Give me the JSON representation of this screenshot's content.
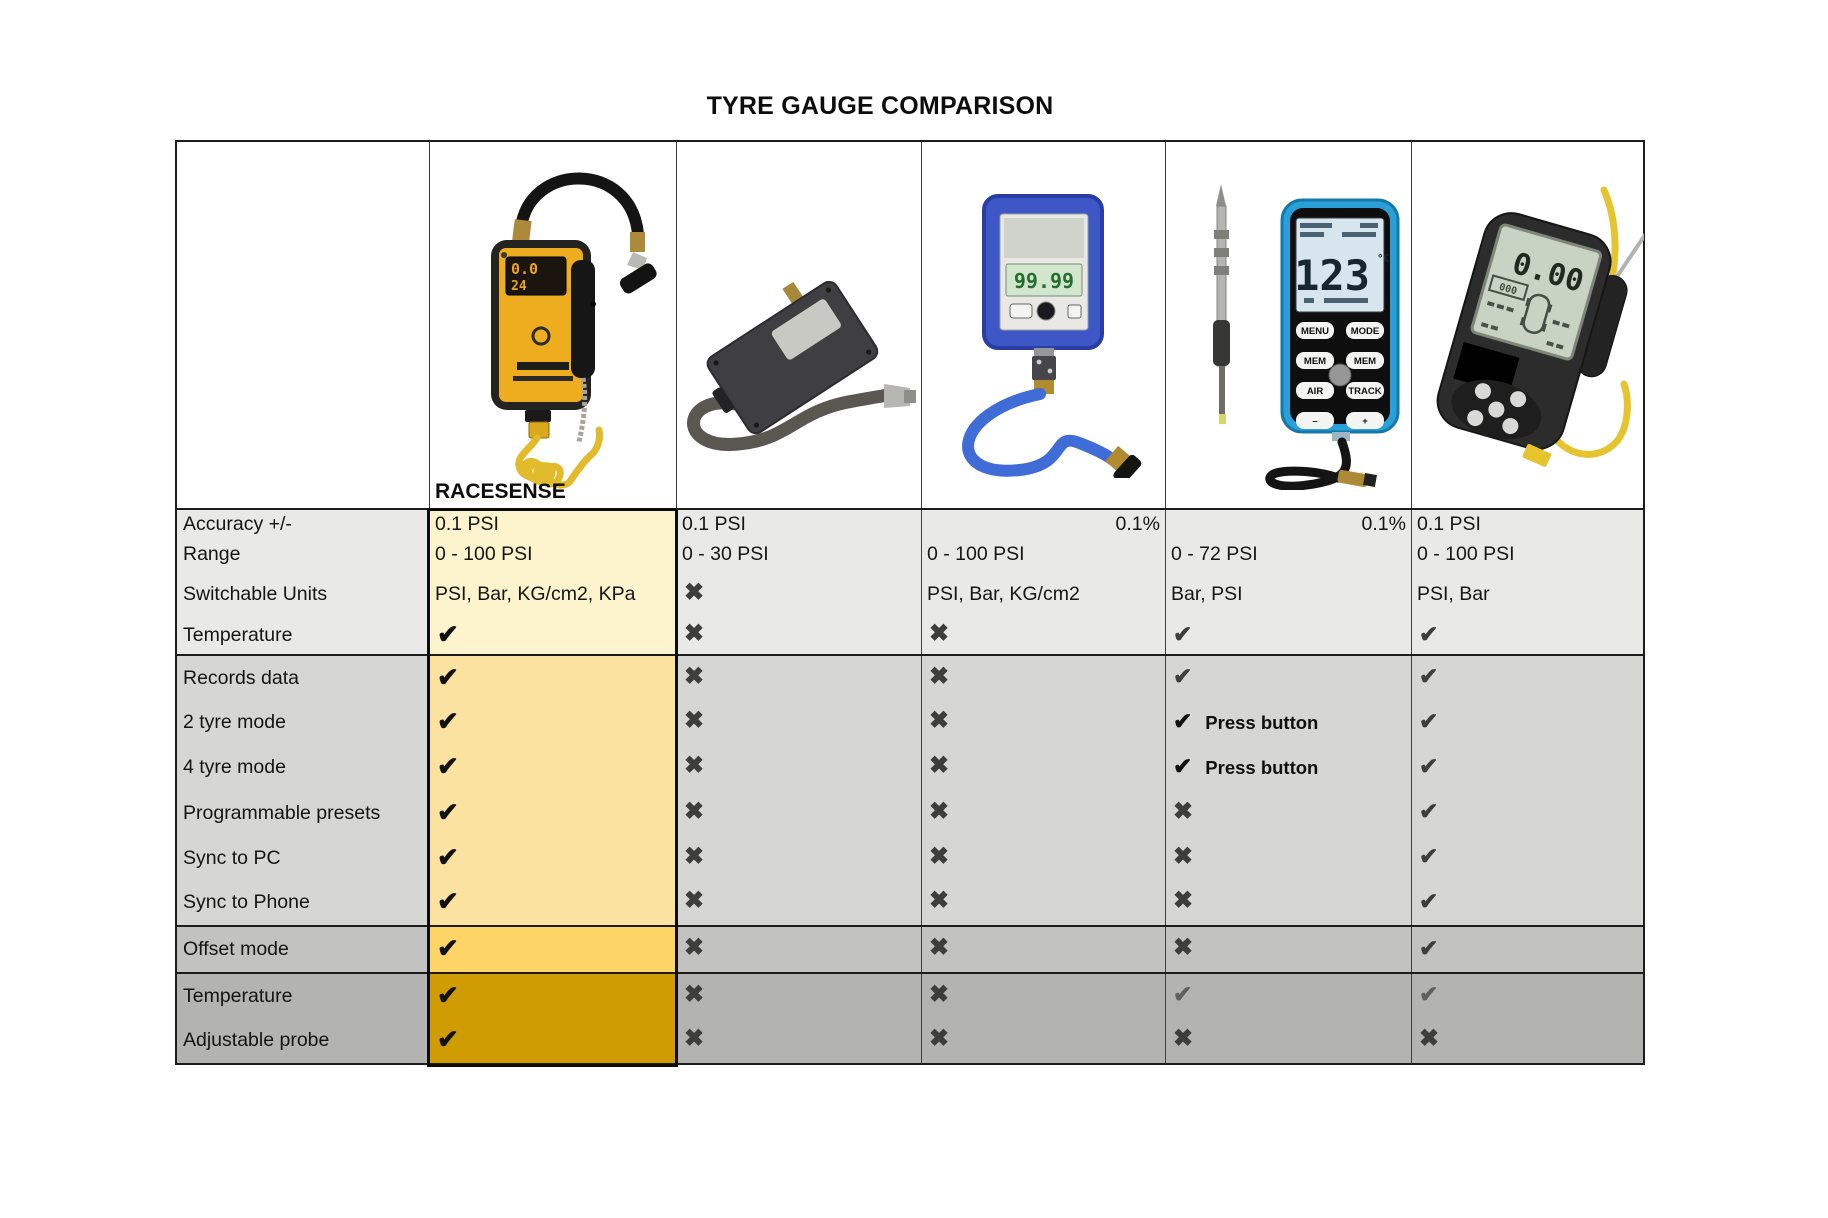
{
  "title": "TYRE GAUGE COMPARISON",
  "header": {
    "racesense_label": "RACESENSE",
    "products": [
      {
        "id": "racesense",
        "photo": "yellow gauge with black hose and coiled yellow cable"
      },
      {
        "id": "metal-gauge",
        "photo": "gunmetal gauge with grey looped hose"
      },
      {
        "id": "blue-gauge",
        "photo": "blue digital gauge with blue hose"
      },
      {
        "id": "temp-gauge",
        "photo": "pencil probe and blue handheld unit"
      },
      {
        "id": "pro-gauge",
        "photo": "black handheld unit with probe and yellow cable"
      }
    ]
  },
  "devices": {
    "racesense_lcd_top": "0.0",
    "racesense_lcd_bottom": "24",
    "blue_gauge_lcd": "99.99",
    "temp_gauge_lcd": "123",
    "temp_gauge_lcd_unit": "°C",
    "temp_gauge_buttons": [
      "MENU",
      "MODE",
      "MEM",
      "MEM",
      "AIR",
      "TRACK",
      "–",
      "+"
    ],
    "pro_gauge_lcd": "0.00",
    "pro_gauge_lcd_small": "000"
  },
  "marks": {
    "check_glyph": "✔",
    "cross_glyph": "✖"
  },
  "colors": {
    "border": "#1c1c1c",
    "racesense_outline": "#0c0c0c",
    "mark_standard": "#3d3d3d",
    "mark_racesense": "#111111",
    "mark_muted": "#606060",
    "sections": [
      {
        "row_bg": "#e9e9e7",
        "racesense_bg": "#fdf3cd"
      },
      {
        "row_bg": "#d6d6d4",
        "racesense_bg": "#fce2a0"
      },
      {
        "row_bg": "#c2c2c0",
        "racesense_bg": "#fcd566"
      },
      {
        "row_bg": "#b3b3b1",
        "racesense_bg": "#d09c04"
      }
    ]
  },
  "table": {
    "sections": [
      {
        "rows": [
          {
            "label": "Accuracy +/-",
            "cells": [
              {
                "t": "0.1 PSI"
              },
              {
                "t": "0.1 PSI"
              },
              {
                "t": "0.1%",
                "align": "right"
              },
              {
                "t": "0.1%",
                "align": "right"
              },
              {
                "t": "0.1 PSI"
              }
            ]
          },
          {
            "label": "Range",
            "cells": [
              {
                "t": "0 - 100 PSI"
              },
              {
                "t": "0 - 30 PSI"
              },
              {
                "t": "0 - 100 PSI"
              },
              {
                "t": "0 - 72 PSI"
              },
              {
                "t": "0 - 100 PSI"
              }
            ]
          },
          {
            "label": "Switchable Units",
            "cells": [
              {
                "t": "PSI, Bar, KG/cm2, KPa"
              },
              {
                "m": "cross"
              },
              {
                "t": "PSI, Bar, KG/cm2"
              },
              {
                "t": "Bar, PSI"
              },
              {
                "t": "PSI, Bar"
              }
            ]
          },
          {
            "label": "Temperature",
            "cells": [
              {
                "m": "check"
              },
              {
                "m": "cross"
              },
              {
                "m": "cross"
              },
              {
                "m": "check"
              },
              {
                "m": "check"
              }
            ]
          }
        ]
      },
      {
        "rows": [
          {
            "label": "Records data",
            "cells": [
              {
                "m": "check"
              },
              {
                "m": "cross"
              },
              {
                "m": "cross"
              },
              {
                "m": "check"
              },
              {
                "m": "check"
              }
            ]
          },
          {
            "label": "2 tyre mode",
            "cells": [
              {
                "m": "check"
              },
              {
                "m": "cross"
              },
              {
                "m": "cross"
              },
              {
                "m": "check",
                "note": "Press button"
              },
              {
                "m": "check"
              }
            ]
          },
          {
            "label": "4 tyre mode",
            "cells": [
              {
                "m": "check"
              },
              {
                "m": "cross"
              },
              {
                "m": "cross"
              },
              {
                "m": "check",
                "note": "Press button"
              },
              {
                "m": "check"
              }
            ]
          },
          {
            "label": "Programmable presets",
            "cells": [
              {
                "m": "check"
              },
              {
                "m": "cross"
              },
              {
                "m": "cross"
              },
              {
                "m": "cross"
              },
              {
                "m": "check"
              }
            ]
          },
          {
            "label": "Sync to PC",
            "cells": [
              {
                "m": "check"
              },
              {
                "m": "cross"
              },
              {
                "m": "cross"
              },
              {
                "m": "cross"
              },
              {
                "m": "check"
              }
            ]
          },
          {
            "label": "Sync to Phone",
            "cells": [
              {
                "m": "check"
              },
              {
                "m": "cross"
              },
              {
                "m": "cross"
              },
              {
                "m": "cross"
              },
              {
                "m": "check"
              }
            ]
          }
        ]
      },
      {
        "rows": [
          {
            "label": "Offset mode",
            "cells": [
              {
                "m": "check"
              },
              {
                "m": "cross"
              },
              {
                "m": "cross"
              },
              {
                "m": "cross"
              },
              {
                "m": "check"
              }
            ]
          }
        ]
      },
      {
        "rows": [
          {
            "label": "Temperature",
            "cells": [
              {
                "m": "check"
              },
              {
                "m": "cross"
              },
              {
                "m": "cross"
              },
              {
                "m": "check_muted"
              },
              {
                "m": "check_muted"
              }
            ]
          },
          {
            "label": "Adjustable probe",
            "cells": [
              {
                "m": "check"
              },
              {
                "m": "cross"
              },
              {
                "m": "cross"
              },
              {
                "m": "cross"
              },
              {
                "m": "cross"
              }
            ]
          }
        ]
      }
    ]
  }
}
